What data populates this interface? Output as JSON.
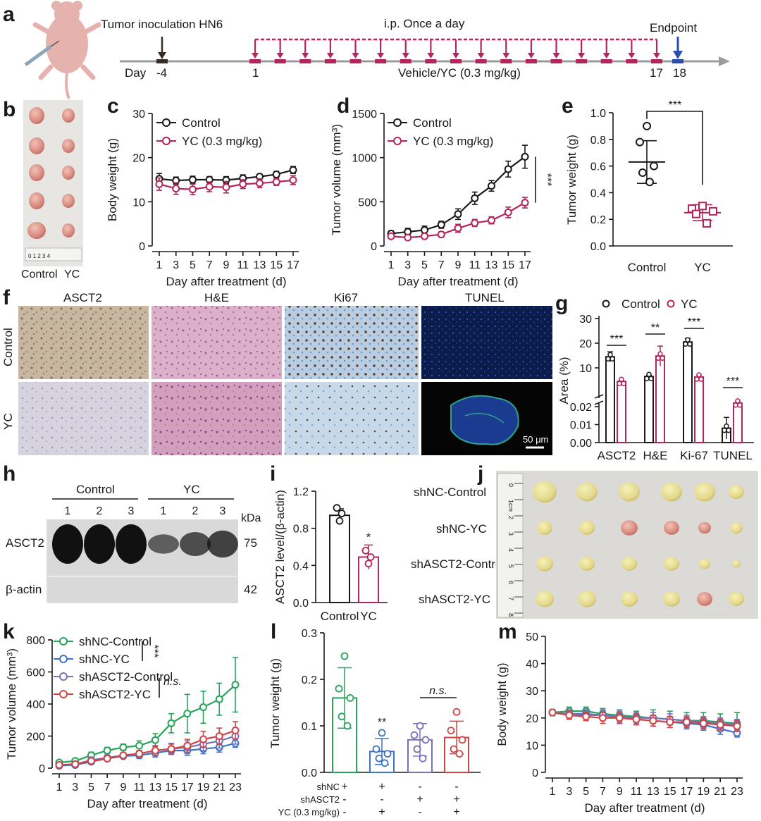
{
  "colors": {
    "control": "#1a1a1a",
    "yc": "#b5245c",
    "shNC_Control": "#27a35a",
    "shNC_YC": "#3e73c7",
    "shASCT2_Control": "#7b70b8",
    "shASCT2_YC": "#d14545",
    "arrow": "#b5245c",
    "endpoint": "#2a4db0"
  },
  "panel_labels": [
    "a",
    "b",
    "c",
    "d",
    "e",
    "f",
    "g",
    "h",
    "i",
    "j",
    "k",
    "l",
    "m"
  ],
  "panel_a": {
    "inoculation": "Tumor inoculation HN6",
    "treatment": "i.p. Once a day",
    "endpoint": "Endpoint",
    "day_label": "Day",
    "day_start": "-4",
    "day_first": "1",
    "day_last": "17",
    "day_end": "18",
    "vehicle": "Vehicle/YC (0.3 mg/kg)",
    "arrow_count": 17
  },
  "panel_b": {
    "labels": [
      "Control",
      "YC"
    ],
    "ruler_text": "0 1 2 3 4"
  },
  "panel_f": {
    "columns": [
      "ASCT2",
      "H&E",
      "Ki67",
      "TUNEL"
    ],
    "rows": [
      "Control",
      "YC"
    ],
    "scale_bar": "50 μm"
  },
  "panel_h": {
    "groups": [
      "Control",
      "YC"
    ],
    "lanes": [
      "1",
      "2",
      "3",
      "1",
      "2",
      "3"
    ],
    "kda": "kDa",
    "bands": [
      {
        "name": "ASCT2",
        "mw": "75"
      },
      {
        "name": "β-actin",
        "mw": "42"
      }
    ]
  },
  "panel_j": {
    "rows": [
      "shNC-Control",
      "shNC-YC",
      "shASCT2-Control",
      "shASCT2-YC"
    ],
    "ruler": [
      "0",
      "1cm",
      "2",
      "3",
      "4",
      "5",
      "6",
      "7",
      "8"
    ]
  },
  "chart_data": [
    {
      "id": "c",
      "type": "line",
      "xlabel": "Day after treatment (d)",
      "ylabel": "Body weight (g)",
      "ylim": [
        0,
        30
      ],
      "yticks": [
        0,
        10,
        20,
        30
      ],
      "x": [
        1,
        3,
        5,
        7,
        9,
        11,
        13,
        15,
        17
      ],
      "series": [
        {
          "name": "Control",
          "values": [
            15.2,
            14.8,
            15.0,
            15.0,
            14.9,
            15.3,
            15.7,
            16.2,
            17.2
          ],
          "err": [
            1.2,
            0.8,
            0.8,
            0.7,
            0.8,
            0.8,
            0.6,
            0.7,
            0.8
          ]
        },
        {
          "name": "YC (0.3 mg/kg)",
          "values": [
            14.0,
            13.0,
            12.8,
            13.4,
            13.3,
            14.0,
            14.2,
            14.5,
            14.9
          ],
          "err": [
            1.4,
            1.3,
            1.2,
            1.1,
            1.3,
            1.0,
            1.0,
            0.8,
            1.0
          ]
        }
      ]
    },
    {
      "id": "d",
      "type": "line",
      "xlabel": "Day after treatment (d)",
      "ylabel": "Tumor volume (mm³)",
      "ylim": [
        0,
        1500
      ],
      "yticks": [
        0,
        500,
        1000,
        1500
      ],
      "x": [
        1,
        3,
        5,
        7,
        9,
        11,
        13,
        15,
        17
      ],
      "annotation": "***",
      "series": [
        {
          "name": "Control",
          "values": [
            140,
            160,
            180,
            240,
            360,
            540,
            680,
            870,
            1010
          ],
          "err": [
            30,
            40,
            45,
            40,
            60,
            70,
            60,
            90,
            130
          ]
        },
        {
          "name": "YC (0.3 mg/kg)",
          "values": [
            110,
            95,
            110,
            130,
            200,
            260,
            290,
            380,
            490
          ],
          "err": [
            20,
            25,
            25,
            30,
            45,
            40,
            40,
            60,
            60
          ]
        }
      ]
    },
    {
      "id": "e",
      "type": "scatter",
      "ylabel": "Tumor weight (g)",
      "ylim": [
        0,
        1.0
      ],
      "yticks": [
        "0.0",
        "0.2",
        "0.4",
        "0.6",
        "0.8",
        "1.0"
      ],
      "categories": [
        "Control",
        "YC"
      ],
      "annotation": "***",
      "groups": [
        {
          "name": "Control",
          "mean": 0.63,
          "sd": 0.16,
          "points": [
            0.9,
            0.78,
            0.6,
            0.55,
            0.48
          ]
        },
        {
          "name": "YC",
          "mean": 0.25,
          "sd": 0.06,
          "points": [
            0.3,
            0.28,
            0.26,
            0.24,
            0.17
          ]
        }
      ]
    },
    {
      "id": "g",
      "type": "bar",
      "ylabel": "Area (%)",
      "categories": [
        "ASCT2",
        "H&E",
        "Ki-67",
        "TUNEL"
      ],
      "legend": [
        "Control",
        "YC"
      ],
      "upper_ticks": [
        "10",
        "20",
        "30"
      ],
      "lower_ticks": [
        "0.00",
        "0.01",
        "0.02"
      ],
      "annotations": [
        "***",
        "**",
        "***",
        "***"
      ],
      "series": [
        {
          "name": "Control",
          "values": [
            14.5,
            6.5,
            20.5,
            0.008
          ],
          "err": [
            2.0,
            0.5,
            1.5,
            0.006
          ]
        },
        {
          "name": "YC",
          "values": [
            4.5,
            14.8,
            6.3,
            0.022
          ],
          "err": [
            0.5,
            4.0,
            0.8,
            0.001
          ]
        }
      ]
    },
    {
      "id": "i",
      "type": "bar",
      "ylabel": "ASCT2 level/(β-actin)",
      "ylim": [
        0,
        1.2
      ],
      "yticks": [
        "0.0",
        "0.4",
        "0.8",
        "1.2"
      ],
      "categories": [
        "Control",
        "YC"
      ],
      "annotation": "*",
      "values": [
        0.94,
        0.49
      ],
      "err": [
        0.07,
        0.13
      ],
      "points": [
        [
          1.02,
          0.96,
          0.88
        ],
        [
          0.56,
          0.49,
          0.42
        ]
      ]
    },
    {
      "id": "k",
      "type": "line",
      "xlabel": "Day after treatment (d)",
      "ylabel": "Tumor volume (mm³)",
      "ylim": [
        0,
        800
      ],
      "yticks": [
        0,
        200,
        400,
        600,
        800
      ],
      "x": [
        1,
        3,
        5,
        7,
        9,
        11,
        13,
        15,
        17,
        19,
        21,
        23
      ],
      "annotations": [
        "***",
        "n.s."
      ],
      "series": [
        {
          "name": "shNC-Control",
          "values": [
            35,
            45,
            80,
            110,
            130,
            140,
            175,
            280,
            340,
            380,
            430,
            520
          ],
          "err": [
            10,
            15,
            20,
            20,
            20,
            30,
            40,
            60,
            120,
            100,
            100,
            170
          ]
        },
        {
          "name": "shNC-YC",
          "values": [
            15,
            20,
            40,
            60,
            75,
            80,
            95,
            110,
            110,
            120,
            130,
            155
          ],
          "err": [
            5,
            8,
            10,
            15,
            15,
            20,
            25,
            25,
            30,
            30,
            30,
            25
          ]
        },
        {
          "name": "shASCT2-Control",
          "values": [
            20,
            25,
            50,
            65,
            80,
            90,
            110,
            120,
            130,
            150,
            170,
            200
          ],
          "err": [
            6,
            8,
            12,
            15,
            15,
            20,
            30,
            35,
            40,
            40,
            45,
            50
          ]
        },
        {
          "name": "shASCT2-YC",
          "values": [
            20,
            25,
            45,
            60,
            80,
            90,
            110,
            120,
            140,
            180,
            200,
            235
          ],
          "err": [
            6,
            8,
            12,
            15,
            15,
            20,
            30,
            30,
            40,
            50,
            50,
            55
          ]
        }
      ]
    },
    {
      "id": "l",
      "type": "bar",
      "ylabel": "Tumor weight (g)",
      "ylim": [
        0,
        0.3
      ],
      "yticks": [
        "0.0",
        "0.1",
        "0.2",
        "0.3"
      ],
      "annotations": [
        "**",
        "n.s."
      ],
      "row_labels": [
        "shNC",
        "shASCT2",
        "YC (0.3 mg/kg)"
      ],
      "signs": [
        [
          "+",
          "-",
          "-"
        ],
        [
          "+",
          "-",
          "+"
        ],
        [
          "-",
          "+",
          "-"
        ],
        [
          "-",
          "+",
          "+"
        ]
      ],
      "values": [
        0.16,
        0.045,
        0.07,
        0.075
      ],
      "err": [
        0.065,
        0.028,
        0.035,
        0.035
      ],
      "points": [
        [
          0.25,
          0.18,
          0.16,
          0.12,
          0.1
        ],
        [
          0.085,
          0.05,
          0.04,
          0.03,
          0.02
        ],
        [
          0.1,
          0.08,
          0.07,
          0.05,
          0.03
        ],
        [
          0.13,
          0.09,
          0.07,
          0.05,
          0.04
        ]
      ]
    },
    {
      "id": "m",
      "type": "line",
      "xlabel": "Day after treatment (d)",
      "ylabel": "Body weight (g)",
      "ylim": [
        0,
        50
      ],
      "yticks": [
        0,
        10,
        20,
        30,
        40,
        50
      ],
      "x": [
        1,
        3,
        5,
        7,
        9,
        11,
        13,
        15,
        17,
        19,
        21,
        23
      ],
      "series": [
        {
          "name": "shNC-Control",
          "values": [
            22,
            22.5,
            22.5,
            21.5,
            21,
            20.5,
            20,
            19.5,
            19,
            19,
            18.5,
            18
          ],
          "err": [
            1.2,
            1.5,
            1.5,
            2,
            2,
            2,
            3,
            3,
            3,
            3,
            3,
            4
          ]
        },
        {
          "name": "shNC-YC",
          "values": [
            22,
            21.5,
            21.5,
            21,
            20,
            19.5,
            19,
            18.5,
            18,
            17.5,
            16,
            14.5
          ],
          "err": [
            1,
            1.5,
            1.5,
            1.5,
            2,
            2,
            2,
            2,
            2,
            2,
            2,
            1.5
          ]
        },
        {
          "name": "shASCT2-Control",
          "values": [
            22,
            21.5,
            21,
            21,
            20.5,
            20,
            20,
            19.5,
            19,
            18.5,
            18,
            17.5
          ],
          "err": [
            1,
            1.5,
            1.5,
            2,
            2,
            2,
            2,
            2,
            2,
            2,
            2,
            2
          ]
        },
        {
          "name": "shASCT2-YC",
          "values": [
            22,
            21,
            20.5,
            20,
            20,
            19.5,
            19,
            18.5,
            18.5,
            18,
            17.5,
            17
          ],
          "err": [
            1,
            1.5,
            1.5,
            2,
            2,
            2,
            2,
            2,
            2,
            2,
            2,
            2
          ]
        }
      ]
    }
  ]
}
